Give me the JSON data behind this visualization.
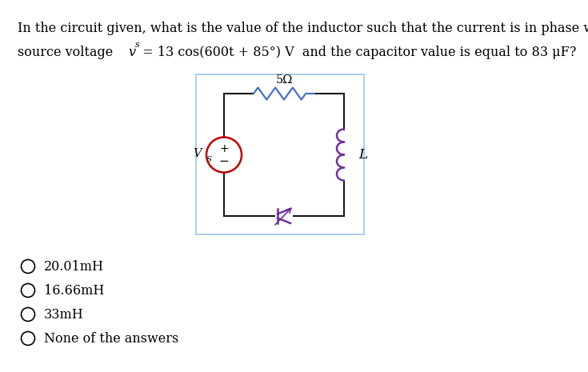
{
  "bg_color": "#ffffff",
  "question_line1": "In the circuit given, what is the value of the inductor such that the current is in phase with the",
  "question_line2_pre": "source voltage",
  "question_line2_vs": "v",
  "question_line2_vs_sub": "s",
  "question_line2_post": " = 13 cos(600t + 85°) V  and the capacitor value is equal to 83 μF?",
  "options": [
    "20.01mH",
    "16.66mH",
    "33mH",
    "None of the answers"
  ],
  "resistor_label": "5Ω",
  "inductor_label": "L",
  "source_label_main": "V",
  "source_label_sub": "S",
  "text_color": "#000000",
  "circuit_wire_color": "#1a1a1a",
  "resistor_color": "#4472c4",
  "inductor_color": "#7030a0",
  "source_color": "#c00000",
  "capacitor_color": "#7030a0",
  "box_border_color": "#9dc3e6",
  "line1_fontsize": 11.5,
  "options_fontsize": 11.5
}
